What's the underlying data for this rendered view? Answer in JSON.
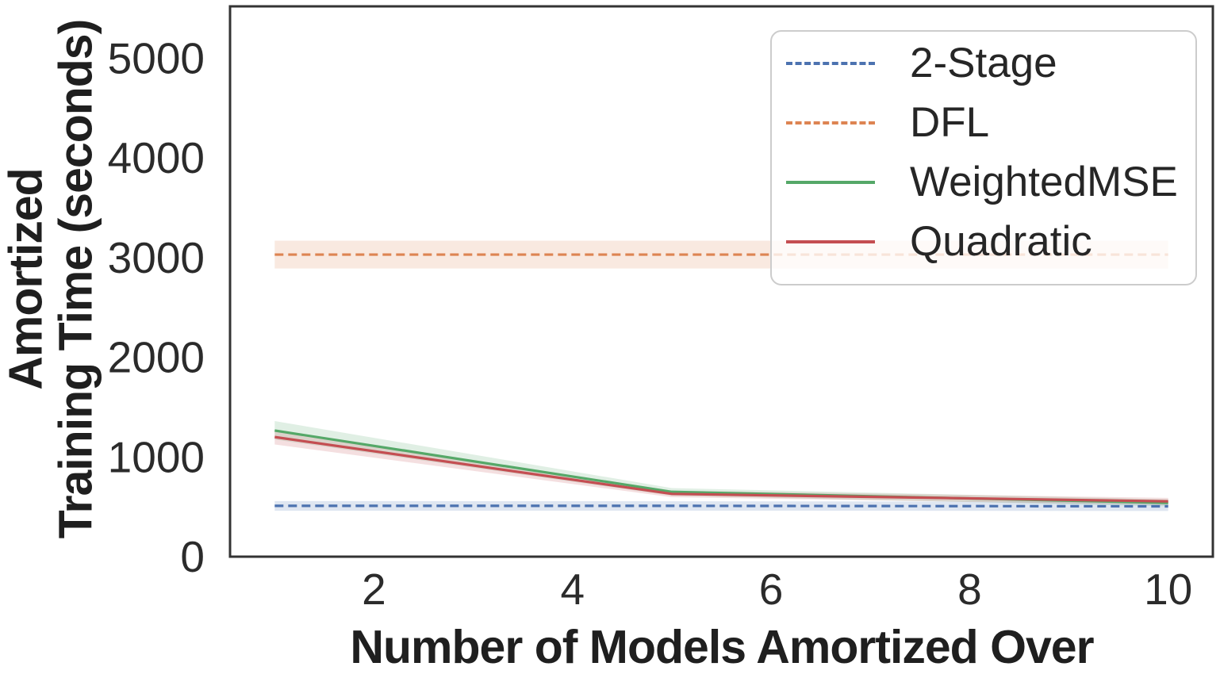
{
  "figure": {
    "background_color": "#ffffff",
    "text_color": "#262626",
    "spine_color": "#333333",
    "legend_border_color": "#cccccc"
  },
  "chart_data": {
    "type": "line",
    "title": "",
    "xlabel": "Number of Models Amortized Over",
    "ylabel": "Amortized Training Time (seconds)",
    "ylabel_line1": "Amortized",
    "ylabel_line2": "Training Time (seconds)",
    "xlim": [
      0.55,
      10.45
    ],
    "ylim": [
      0,
      5520
    ],
    "x_ticks": [
      2,
      4,
      6,
      8,
      10
    ],
    "y_ticks": [
      0,
      1000,
      2000,
      3000,
      4000,
      5000
    ],
    "grid": false,
    "legend_position": "upper right",
    "band_alpha": 0.18,
    "x": [
      1,
      5,
      10
    ],
    "series": [
      {
        "name": "2-Stage",
        "color": "#4C72B0",
        "dashed": true,
        "values": [
          510,
          510,
          505
        ],
        "band_low": [
          460,
          462,
          458
        ],
        "band_high": [
          558,
          556,
          552
        ]
      },
      {
        "name": "DFL",
        "color": "#DD8452",
        "dashed": true,
        "values": [
          3030,
          3030,
          3030
        ],
        "band_low": [
          2890,
          2890,
          2890
        ],
        "band_high": [
          3170,
          3170,
          3170
        ]
      },
      {
        "name": "WeightedMSE",
        "color": "#55A868",
        "dashed": false,
        "values": [
          1265,
          650,
          540
        ],
        "band_low": [
          1175,
          612,
          505
        ],
        "band_high": [
          1360,
          688,
          575
        ]
      },
      {
        "name": "Quadratic",
        "color": "#C44E52",
        "dashed": false,
        "values": [
          1200,
          630,
          555
        ],
        "band_low": [
          1125,
          597,
          520
        ],
        "band_high": [
          1270,
          663,
          590
        ]
      }
    ]
  }
}
